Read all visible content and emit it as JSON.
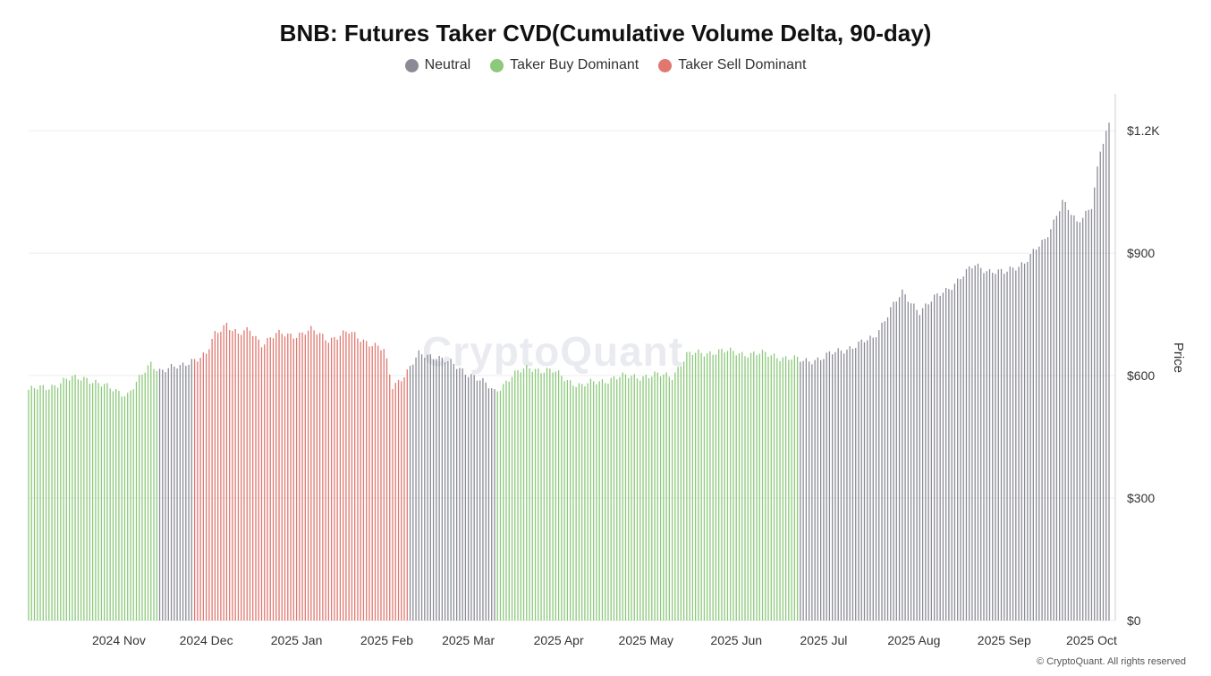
{
  "chart_data": {
    "type": "bar",
    "title": "BNB: Futures Taker CVD(Cumulative Volume Delta, 90-day)",
    "ylabel": "Price",
    "ylim": [
      0,
      1290
    ],
    "y_ticks": [
      0,
      300,
      600,
      900,
      1200
    ],
    "y_tick_labels": [
      "$0",
      "$300",
      "$600",
      "$900",
      "$1.2K"
    ],
    "grid": true,
    "legend_position": "top-center",
    "x_start": "2024-10-01",
    "x_ticks": [
      {
        "date": "2024-11-01",
        "label": "2024 Nov"
      },
      {
        "date": "2024-12-01",
        "label": "2024 Dec"
      },
      {
        "date": "2025-01-01",
        "label": "2025 Jan"
      },
      {
        "date": "2025-02-01",
        "label": "2025 Feb"
      },
      {
        "date": "2025-03-01",
        "label": "2025 Mar"
      },
      {
        "date": "2025-04-01",
        "label": "2025 Apr"
      },
      {
        "date": "2025-05-01",
        "label": "2025 May"
      },
      {
        "date": "2025-06-01",
        "label": "2025 Jun"
      },
      {
        "date": "2025-07-01",
        "label": "2025 Jul"
      },
      {
        "date": "2025-08-01",
        "label": "2025 Aug"
      },
      {
        "date": "2025-09-01",
        "label": "2025 Sep"
      },
      {
        "date": "2025-10-01",
        "label": "2025 Oct"
      }
    ],
    "series": [
      {
        "name": "Neutral",
        "color": "#8b8b97"
      },
      {
        "name": "Taker Buy Dominant",
        "color": "#8cc97a"
      },
      {
        "name": "Taker Sell Dominant",
        "color": "#e07870"
      }
    ],
    "anchors": [
      [
        "2024-10-01",
        565
      ],
      [
        "2024-10-07",
        570
      ],
      [
        "2024-10-14",
        590
      ],
      [
        "2024-10-21",
        595
      ],
      [
        "2024-10-28",
        570
      ],
      [
        "2024-11-04",
        555
      ],
      [
        "2024-11-08",
        590
      ],
      [
        "2024-11-12",
        630
      ],
      [
        "2024-11-15",
        615
      ],
      [
        "2024-11-22",
        620
      ],
      [
        "2024-11-26",
        640
      ],
      [
        "2024-12-01",
        650
      ],
      [
        "2024-12-04",
        700
      ],
      [
        "2024-12-08",
        730
      ],
      [
        "2024-12-12",
        700
      ],
      [
        "2024-12-16",
        710
      ],
      [
        "2024-12-20",
        680
      ],
      [
        "2024-12-25",
        700
      ],
      [
        "2024-12-31",
        700
      ],
      [
        "2025-01-06",
        710
      ],
      [
        "2025-01-12",
        690
      ],
      [
        "2025-01-19",
        705
      ],
      [
        "2025-01-25",
        685
      ],
      [
        "2025-01-31",
        660
      ],
      [
        "2025-02-03",
        575
      ],
      [
        "2025-02-08",
        610
      ],
      [
        "2025-02-12",
        650
      ],
      [
        "2025-02-18",
        650
      ],
      [
        "2025-02-25",
        620
      ],
      [
        "2025-03-03",
        600
      ],
      [
        "2025-03-10",
        560
      ],
      [
        "2025-03-16",
        600
      ],
      [
        "2025-03-22",
        620
      ],
      [
        "2025-03-30",
        610
      ],
      [
        "2025-04-04",
        590
      ],
      [
        "2025-04-09",
        575
      ],
      [
        "2025-04-20",
        595
      ],
      [
        "2025-05-01",
        600
      ],
      [
        "2025-05-10",
        600
      ],
      [
        "2025-05-15",
        650
      ],
      [
        "2025-05-25",
        660
      ],
      [
        "2025-06-04",
        655
      ],
      [
        "2025-06-14",
        650
      ],
      [
        "2025-06-24",
        635
      ],
      [
        "2025-07-01",
        645
      ],
      [
        "2025-07-10",
        670
      ],
      [
        "2025-07-18",
        690
      ],
      [
        "2025-07-24",
        765
      ],
      [
        "2025-07-28",
        800
      ],
      [
        "2025-08-03",
        760
      ],
      [
        "2025-08-12",
        810
      ],
      [
        "2025-08-22",
        870
      ],
      [
        "2025-08-26",
        860
      ],
      [
        "2025-09-01",
        850
      ],
      [
        "2025-09-08",
        880
      ],
      [
        "2025-09-15",
        930
      ],
      [
        "2025-09-21",
        1030
      ],
      [
        "2025-09-26",
        970
      ],
      [
        "2025-10-01",
        1020
      ],
      [
        "2025-10-04",
        1150
      ],
      [
        "2025-10-07",
        1210
      ]
    ],
    "category_periods": [
      {
        "from": "2024-10-01",
        "to": "2024-11-14",
        "category": "Taker Buy Dominant"
      },
      {
        "from": "2024-11-15",
        "to": "2024-11-26",
        "category": "Neutral"
      },
      {
        "from": "2024-11-27",
        "to": "2025-02-08",
        "category": "Taker Sell Dominant"
      },
      {
        "from": "2025-02-09",
        "to": "2025-03-10",
        "category": "Neutral"
      },
      {
        "from": "2025-03-11",
        "to": "2025-06-22",
        "category": "Taker Buy Dominant"
      },
      {
        "from": "2025-06-23",
        "to": "2025-10-07",
        "category": "Neutral"
      }
    ]
  },
  "watermark": "CryptoQuant",
  "credit": "© CryptoQuant. All rights reserved"
}
